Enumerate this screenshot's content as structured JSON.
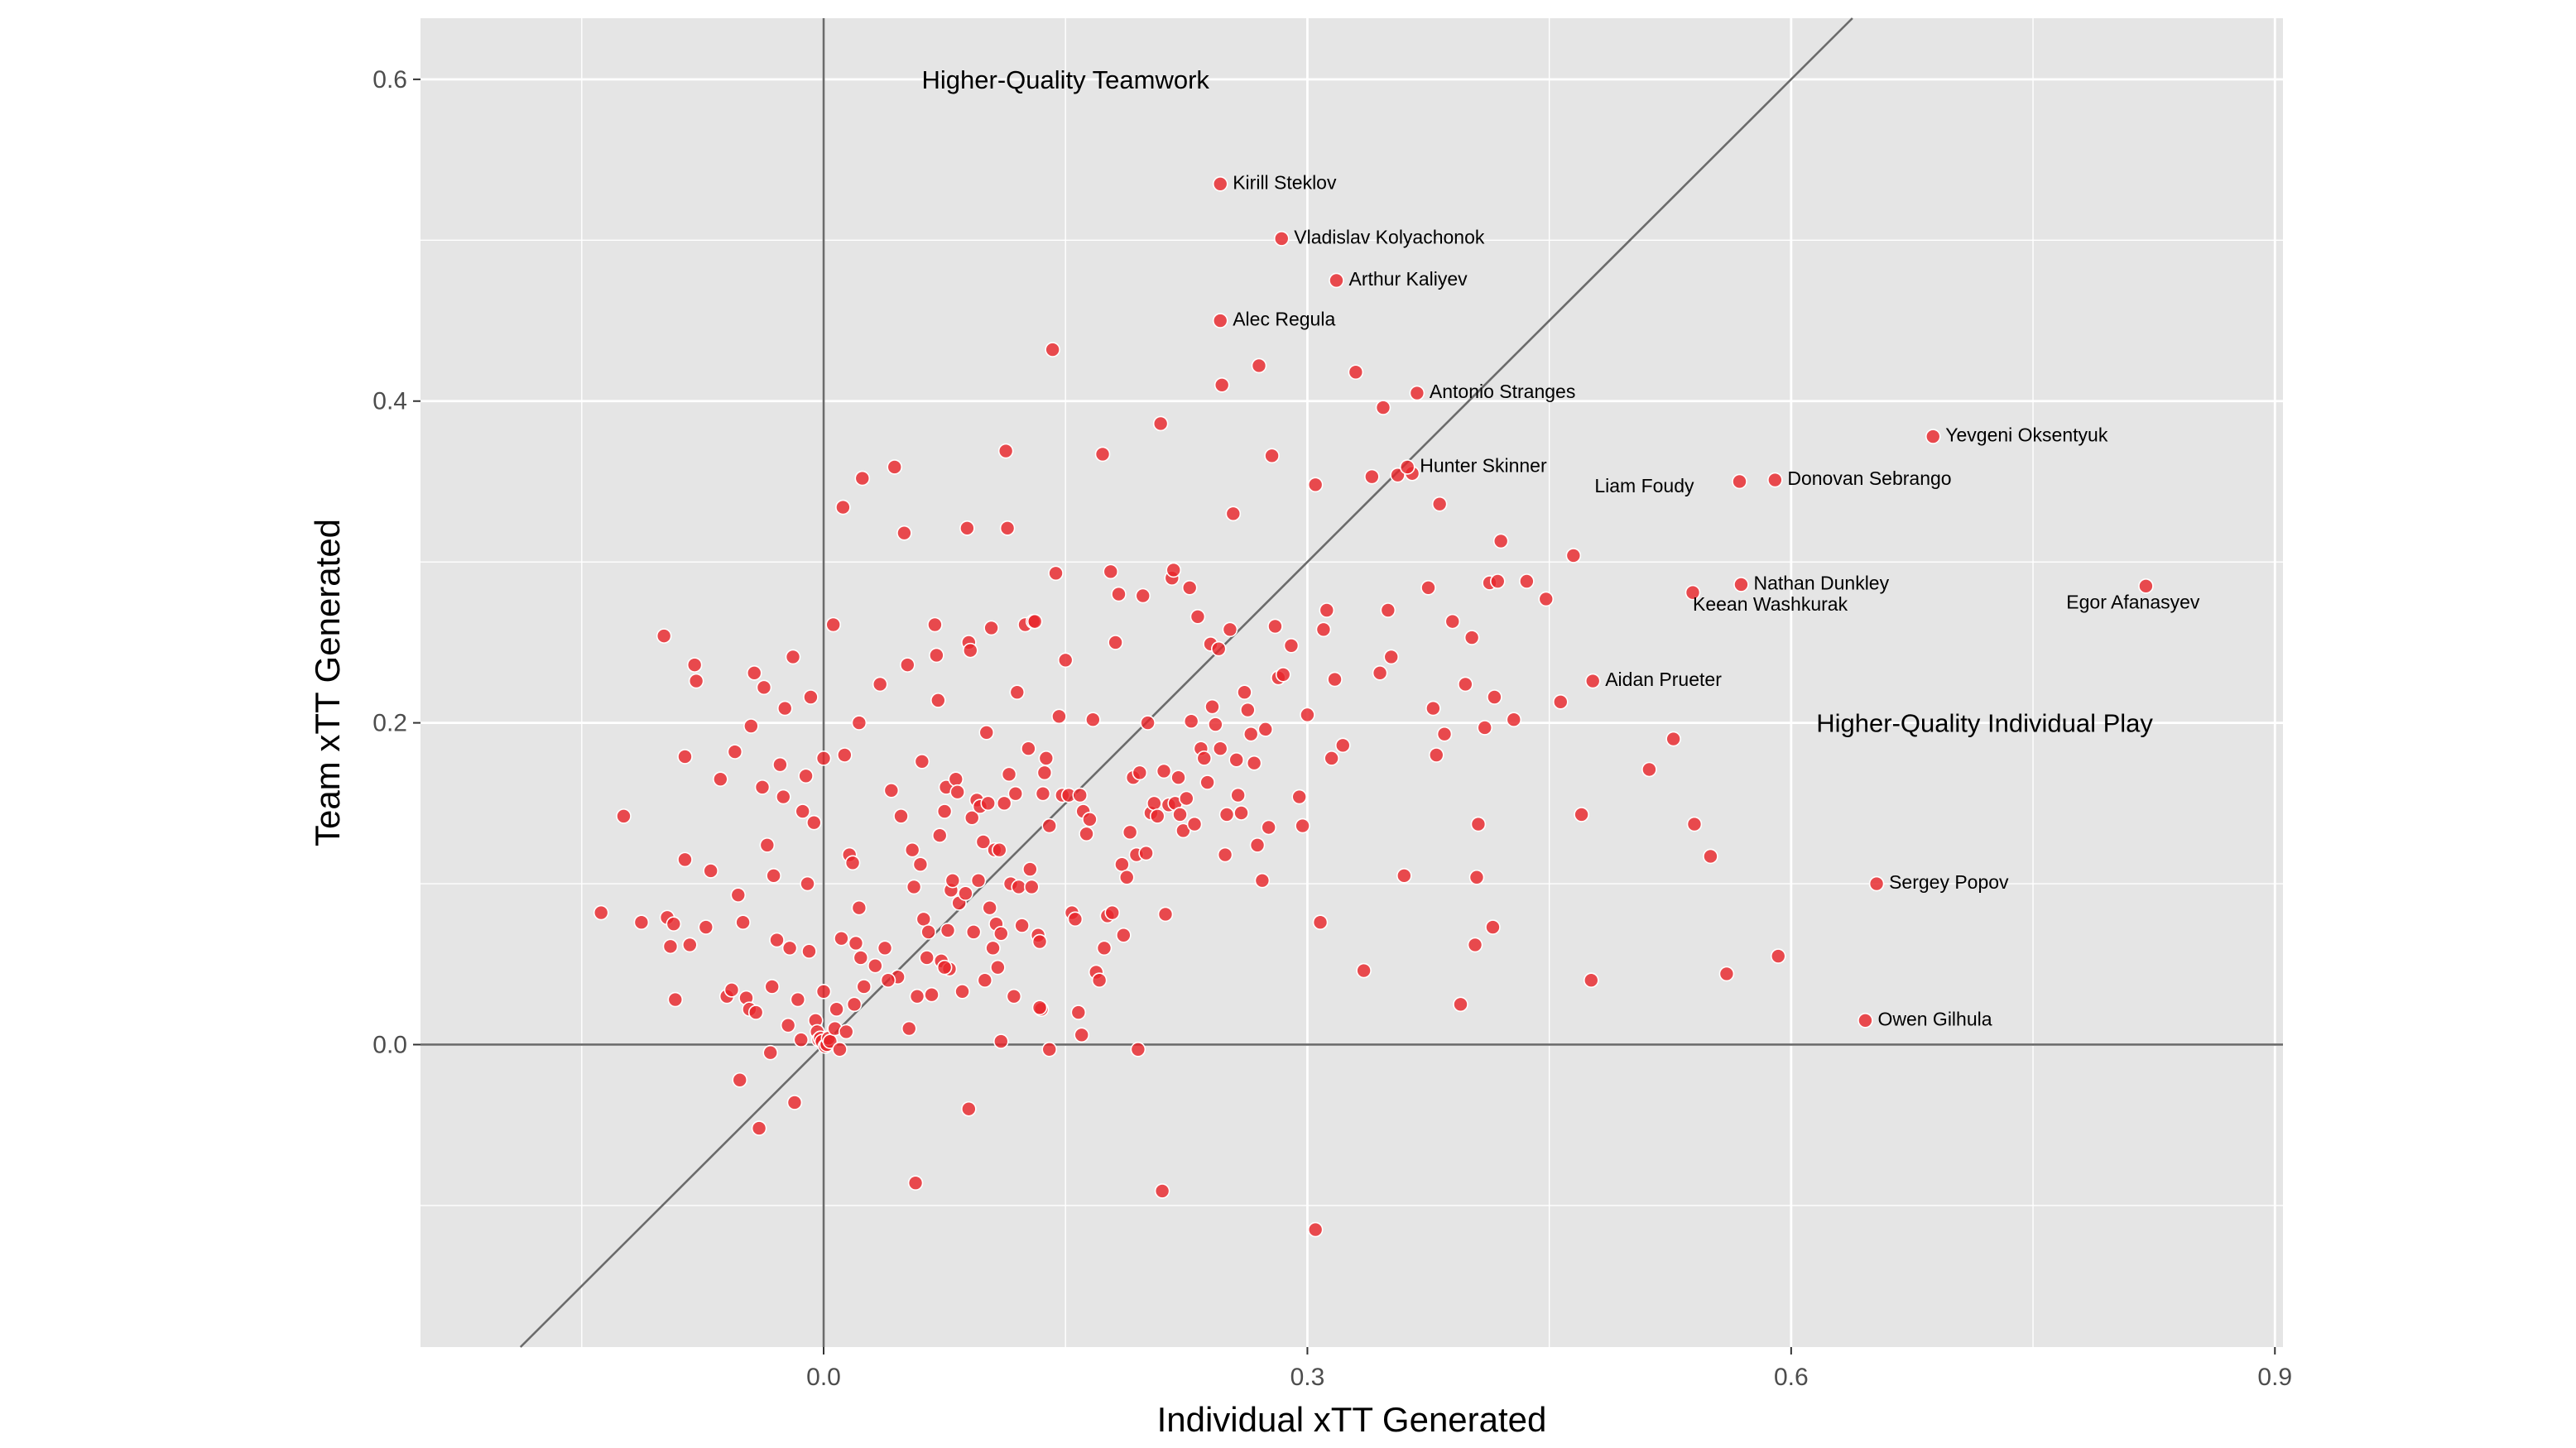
{
  "chart_data": {
    "type": "scatter",
    "xlabel": "Individual xTT Generated",
    "ylabel": "Team xTT Generated",
    "xlim": [
      -0.25,
      0.905
    ],
    "ylim": [
      -0.188,
      0.638
    ],
    "x_ticks": [
      0.0,
      0.3,
      0.6,
      0.9
    ],
    "x_tick_labels": [
      "0.0",
      "0.3",
      "0.6",
      "0.9"
    ],
    "y_ticks": [
      0.0,
      0.2,
      0.4,
      0.6
    ],
    "y_tick_labels": [
      "0.0",
      "0.2",
      "0.4",
      "0.6"
    ],
    "grid": true,
    "reference_lines": {
      "horizontal_y": 0,
      "vertical_x": 0,
      "diagonal": "y = x"
    },
    "region_labels": [
      {
        "text": "Higher-Quality Teamwork",
        "x": 0.15,
        "y": 0.6
      },
      {
        "text": "Higher-Quality Individual Play",
        "x": 0.72,
        "y": 0.2
      }
    ],
    "colors": {
      "point": "#e8262b",
      "point_outline": "#ffffff",
      "panel": "#e5e5e5",
      "grid": "#ffffff",
      "reference_line": "#6b6b6b"
    },
    "labeled_points": [
      {
        "name": "Kirill Steklov",
        "x": 0.246,
        "y": 0.535
      },
      {
        "name": "Vladislav Kolyachonok",
        "x": 0.284,
        "y": 0.501
      },
      {
        "name": "Arthur Kaliyev",
        "x": 0.318,
        "y": 0.475
      },
      {
        "name": "Alec Regula",
        "x": 0.246,
        "y": 0.45
      },
      {
        "name": "Antonio Stranges",
        "x": 0.368,
        "y": 0.405
      },
      {
        "name": "Hunter Skinner",
        "x": 0.362,
        "y": 0.359
      },
      {
        "name": "Yevgeni Oksentyuk",
        "x": 0.688,
        "y": 0.378
      },
      {
        "name": "Liam Foudy",
        "x": 0.568,
        "y": 0.35
      },
      {
        "name": "Donovan Sebrango",
        "x": 0.59,
        "y": 0.351
      },
      {
        "name": "Nathan Dunkley",
        "x": 0.569,
        "y": 0.286
      },
      {
        "name": "Keean Washkurak",
        "x": 0.539,
        "y": 0.281
      },
      {
        "name": "Egor Afanasyev",
        "x": 0.82,
        "y": 0.285
      },
      {
        "name": "Aidan Prueter",
        "x": 0.477,
        "y": 0.226
      },
      {
        "name": "Sergey Popov",
        "x": 0.653,
        "y": 0.1
      },
      {
        "name": "Owen Gilhula",
        "x": 0.646,
        "y": 0.015
      }
    ],
    "points": [
      [
        -0.138,
        0.082
      ],
      [
        -0.124,
        0.142
      ],
      [
        -0.113,
        0.076
      ],
      [
        -0.097,
        0.079
      ],
      [
        -0.095,
        0.061
      ],
      [
        -0.093,
        0.075
      ],
      [
        -0.092,
        0.028
      ],
      [
        -0.086,
        0.179
      ],
      [
        -0.086,
        0.115
      ],
      [
        -0.083,
        0.062
      ],
      [
        -0.08,
        0.236
      ],
      [
        -0.079,
        0.226
      ],
      [
        -0.073,
        0.073
      ],
      [
        -0.07,
        0.108
      ],
      [
        -0.099,
        0.254
      ],
      [
        -0.064,
        0.165
      ],
      [
        -0.06,
        0.03
      ],
      [
        -0.057,
        0.034
      ],
      [
        -0.055,
        0.182
      ],
      [
        -0.053,
        0.093
      ],
      [
        -0.052,
        -0.022
      ],
      [
        -0.05,
        0.076
      ],
      [
        -0.048,
        0.029
      ],
      [
        -0.046,
        0.022
      ],
      [
        -0.045,
        0.198
      ],
      [
        -0.043,
        0.231
      ],
      [
        -0.042,
        0.02
      ],
      [
        -0.04,
        -0.052
      ],
      [
        -0.038,
        0.16
      ],
      [
        -0.037,
        0.222
      ],
      [
        -0.035,
        0.124
      ],
      [
        -0.033,
        -0.005
      ],
      [
        -0.032,
        0.036
      ],
      [
        -0.031,
        0.105
      ],
      [
        -0.029,
        0.065
      ],
      [
        -0.027,
        0.174
      ],
      [
        -0.025,
        0.154
      ],
      [
        -0.024,
        0.209
      ],
      [
        -0.022,
        0.012
      ],
      [
        -0.021,
        0.06
      ],
      [
        -0.019,
        0.241
      ],
      [
        -0.018,
        -0.036
      ],
      [
        -0.016,
        0.028
      ],
      [
        -0.014,
        0.003
      ],
      [
        -0.013,
        0.145
      ],
      [
        -0.011,
        0.167
      ],
      [
        -0.01,
        0.1
      ],
      [
        -0.009,
        0.058
      ],
      [
        -0.008,
        0.216
      ],
      [
        -0.006,
        0.138
      ],
      [
        -0.005,
        0.015
      ],
      [
        -0.004,
        0.008
      ],
      [
        -0.003,
        0.003
      ],
      [
        -0.002,
        0.004
      ],
      [
        -0.001,
        0.002
      ],
      [
        0.0,
        0.178
      ],
      [
        0.0,
        0.033
      ],
      [
        0.001,
        -0.001
      ],
      [
        0.002,
        0.0
      ],
      [
        0.003,
        0.004
      ],
      [
        0.004,
        0.002
      ],
      [
        0.006,
        0.261
      ],
      [
        0.007,
        0.01
      ],
      [
        0.008,
        0.022
      ],
      [
        0.01,
        -0.003
      ],
      [
        0.011,
        0.066
      ],
      [
        0.012,
        0.334
      ],
      [
        0.013,
        0.18
      ],
      [
        0.014,
        0.008
      ],
      [
        0.016,
        0.118
      ],
      [
        0.018,
        0.113
      ],
      [
        0.019,
        0.025
      ],
      [
        0.02,
        0.063
      ],
      [
        0.022,
        0.2
      ],
      [
        0.022,
        0.085
      ],
      [
        0.023,
        0.054
      ],
      [
        0.024,
        0.352
      ],
      [
        0.025,
        0.036
      ],
      [
        0.032,
        0.049
      ],
      [
        0.035,
        0.224
      ],
      [
        0.038,
        0.06
      ],
      [
        0.042,
        0.158
      ],
      [
        0.044,
        0.359
      ],
      [
        0.046,
        0.042
      ],
      [
        0.048,
        0.142
      ],
      [
        0.05,
        0.318
      ],
      [
        0.052,
        0.236
      ],
      [
        0.053,
        0.01
      ],
      [
        0.055,
        0.121
      ],
      [
        0.056,
        0.098
      ],
      [
        0.058,
        0.03
      ],
      [
        0.06,
        0.112
      ],
      [
        0.061,
        0.176
      ],
      [
        0.062,
        0.078
      ],
      [
        0.064,
        0.054
      ],
      [
        0.065,
        0.07
      ],
      [
        0.067,
        0.031
      ],
      [
        0.069,
        0.261
      ],
      [
        0.07,
        0.242
      ],
      [
        0.071,
        0.214
      ],
      [
        0.072,
        0.13
      ],
      [
        0.073,
        0.052
      ],
      [
        0.075,
        0.145
      ],
      [
        0.076,
        0.16
      ],
      [
        0.077,
        0.071
      ],
      [
        0.078,
        0.047
      ],
      [
        0.079,
        0.096
      ],
      [
        0.08,
        0.102
      ],
      [
        0.082,
        0.165
      ],
      [
        0.083,
        0.157
      ],
      [
        0.084,
        0.088
      ],
      [
        0.086,
        0.033
      ],
      [
        0.088,
        0.094
      ],
      [
        0.089,
        0.321
      ],
      [
        0.09,
        0.25
      ],
      [
        0.091,
        0.245
      ],
      [
        0.092,
        0.141
      ],
      [
        0.093,
        0.07
      ],
      [
        0.095,
        0.152
      ],
      [
        0.096,
        0.102
      ],
      [
        0.097,
        0.148
      ],
      [
        0.099,
        0.126
      ],
      [
        0.1,
        0.04
      ],
      [
        0.101,
        0.194
      ],
      [
        0.102,
        0.15
      ],
      [
        0.103,
        0.085
      ],
      [
        0.104,
        0.259
      ],
      [
        0.105,
        0.06
      ],
      [
        0.106,
        0.121
      ],
      [
        0.107,
        0.075
      ],
      [
        0.108,
        0.048
      ],
      [
        0.109,
        0.121
      ],
      [
        0.11,
        0.069
      ],
      [
        0.112,
        0.15
      ],
      [
        0.113,
        0.369
      ],
      [
        0.114,
        0.321
      ],
      [
        0.115,
        0.168
      ],
      [
        0.116,
        0.1
      ],
      [
        0.118,
        0.03
      ],
      [
        0.119,
        0.156
      ],
      [
        0.12,
        0.219
      ],
      [
        0.121,
        0.098
      ],
      [
        0.123,
        0.074
      ],
      [
        0.125,
        0.261
      ],
      [
        0.127,
        0.184
      ],
      [
        0.128,
        0.109
      ],
      [
        0.129,
        0.098
      ],
      [
        0.13,
        0.263
      ],
      [
        0.131,
        0.263
      ],
      [
        0.133,
        0.068
      ],
      [
        0.134,
        0.064
      ],
      [
        0.135,
        0.022
      ],
      [
        0.136,
        0.156
      ],
      [
        0.137,
        0.169
      ],
      [
        0.138,
        0.178
      ],
      [
        0.14,
        0.136
      ],
      [
        0.142,
        0.432
      ],
      [
        0.144,
        0.293
      ],
      [
        0.146,
        0.204
      ],
      [
        0.148,
        0.155
      ],
      [
        0.15,
        0.239
      ],
      [
        0.152,
        0.155
      ],
      [
        0.154,
        0.082
      ],
      [
        0.156,
        0.078
      ],
      [
        0.158,
        0.02
      ],
      [
        0.159,
        0.155
      ],
      [
        0.161,
        0.145
      ],
      [
        0.163,
        0.131
      ],
      [
        0.165,
        0.14
      ],
      [
        0.167,
        0.202
      ],
      [
        0.169,
        0.045
      ],
      [
        0.171,
        0.04
      ],
      [
        0.173,
        0.367
      ],
      [
        0.174,
        0.06
      ],
      [
        0.176,
        0.08
      ],
      [
        0.178,
        0.294
      ],
      [
        0.179,
        0.082
      ],
      [
        0.181,
        0.25
      ],
      [
        0.183,
        0.28
      ],
      [
        0.185,
        0.112
      ],
      [
        0.186,
        0.068
      ],
      [
        0.188,
        0.104
      ],
      [
        0.19,
        0.132
      ],
      [
        0.192,
        0.166
      ],
      [
        0.194,
        0.118
      ],
      [
        0.196,
        0.169
      ],
      [
        0.198,
        0.279
      ],
      [
        0.2,
        0.119
      ],
      [
        0.201,
        0.2
      ],
      [
        0.203,
        0.144
      ],
      [
        0.205,
        0.15
      ],
      [
        0.207,
        0.142
      ],
      [
        0.209,
        0.386
      ],
      [
        0.211,
        0.17
      ],
      [
        0.212,
        0.081
      ],
      [
        0.214,
        0.149
      ],
      [
        0.216,
        0.29
      ],
      [
        0.217,
        0.295
      ],
      [
        0.218,
        0.15
      ],
      [
        0.22,
        0.166
      ],
      [
        0.221,
        0.143
      ],
      [
        0.223,
        0.133
      ],
      [
        0.225,
        0.153
      ],
      [
        0.227,
        0.284
      ],
      [
        0.228,
        0.201
      ],
      [
        0.23,
        0.137
      ],
      [
        0.232,
        0.266
      ],
      [
        0.234,
        0.184
      ],
      [
        0.236,
        0.178
      ],
      [
        0.238,
        0.163
      ],
      [
        0.24,
        0.249
      ],
      [
        0.241,
        0.21
      ],
      [
        0.243,
        0.199
      ],
      [
        0.245,
        0.246
      ],
      [
        0.246,
        0.184
      ],
      [
        0.247,
        0.41
      ],
      [
        0.249,
        0.118
      ],
      [
        0.25,
        0.143
      ],
      [
        0.252,
        0.258
      ],
      [
        0.254,
        0.33
      ],
      [
        0.256,
        0.177
      ],
      [
        0.257,
        0.155
      ],
      [
        0.259,
        0.144
      ],
      [
        0.261,
        0.219
      ],
      [
        0.263,
        0.208
      ],
      [
        0.265,
        0.193
      ],
      [
        0.267,
        0.175
      ],
      [
        0.269,
        0.124
      ],
      [
        0.27,
        0.422
      ],
      [
        0.272,
        0.102
      ],
      [
        0.274,
        0.196
      ],
      [
        0.276,
        0.135
      ],
      [
        0.278,
        0.366
      ],
      [
        0.28,
        0.26
      ],
      [
        0.282,
        0.228
      ],
      [
        0.285,
        0.23
      ],
      [
        0.29,
        0.248
      ],
      [
        0.295,
        0.154
      ],
      [
        0.297,
        0.136
      ],
      [
        0.3,
        0.205
      ],
      [
        0.305,
        0.348
      ],
      [
        0.308,
        0.076
      ],
      [
        0.31,
        0.258
      ],
      [
        0.312,
        0.27
      ],
      [
        0.315,
        0.178
      ],
      [
        0.317,
        0.227
      ],
      [
        0.322,
        0.186
      ],
      [
        0.33,
        0.418
      ],
      [
        0.335,
        0.046
      ],
      [
        0.34,
        0.353
      ],
      [
        0.345,
        0.231
      ],
      [
        0.347,
        0.396
      ],
      [
        0.35,
        0.27
      ],
      [
        0.352,
        0.241
      ],
      [
        0.356,
        0.354
      ],
      [
        0.36,
        0.105
      ],
      [
        0.365,
        0.355
      ],
      [
        0.375,
        0.284
      ],
      [
        0.378,
        0.209
      ],
      [
        0.38,
        0.18
      ],
      [
        0.382,
        0.336
      ],
      [
        0.385,
        0.193
      ],
      [
        0.39,
        0.263
      ],
      [
        0.395,
        0.025
      ],
      [
        0.398,
        0.224
      ],
      [
        0.402,
        0.253
      ],
      [
        0.404,
        0.062
      ],
      [
        0.405,
        0.104
      ],
      [
        0.406,
        0.137
      ],
      [
        0.41,
        0.197
      ],
      [
        0.413,
        0.287
      ],
      [
        0.415,
        0.073
      ],
      [
        0.416,
        0.216
      ],
      [
        0.418,
        0.288
      ],
      [
        0.42,
        0.313
      ],
      [
        0.428,
        0.202
      ],
      [
        0.436,
        0.288
      ],
      [
        0.448,
        0.277
      ],
      [
        0.457,
        0.213
      ],
      [
        0.465,
        0.304
      ],
      [
        0.47,
        0.143
      ],
      [
        0.476,
        0.04
      ],
      [
        0.512,
        0.171
      ],
      [
        0.527,
        0.19
      ],
      [
        0.54,
        0.137
      ],
      [
        0.55,
        0.117
      ],
      [
        0.56,
        0.044
      ],
      [
        0.592,
        0.055
      ],
      [
        0.21,
        -0.091
      ],
      [
        0.305,
        -0.115
      ],
      [
        0.057,
        -0.086
      ],
      [
        0.09,
        -0.04
      ],
      [
        0.195,
        -0.003
      ],
      [
        0.14,
        -0.003
      ],
      [
        0.11,
        0.002
      ],
      [
        0.16,
        0.006
      ],
      [
        0.075,
        0.048
      ],
      [
        0.04,
        0.04
      ],
      [
        0.134,
        0.023
      ]
    ]
  }
}
